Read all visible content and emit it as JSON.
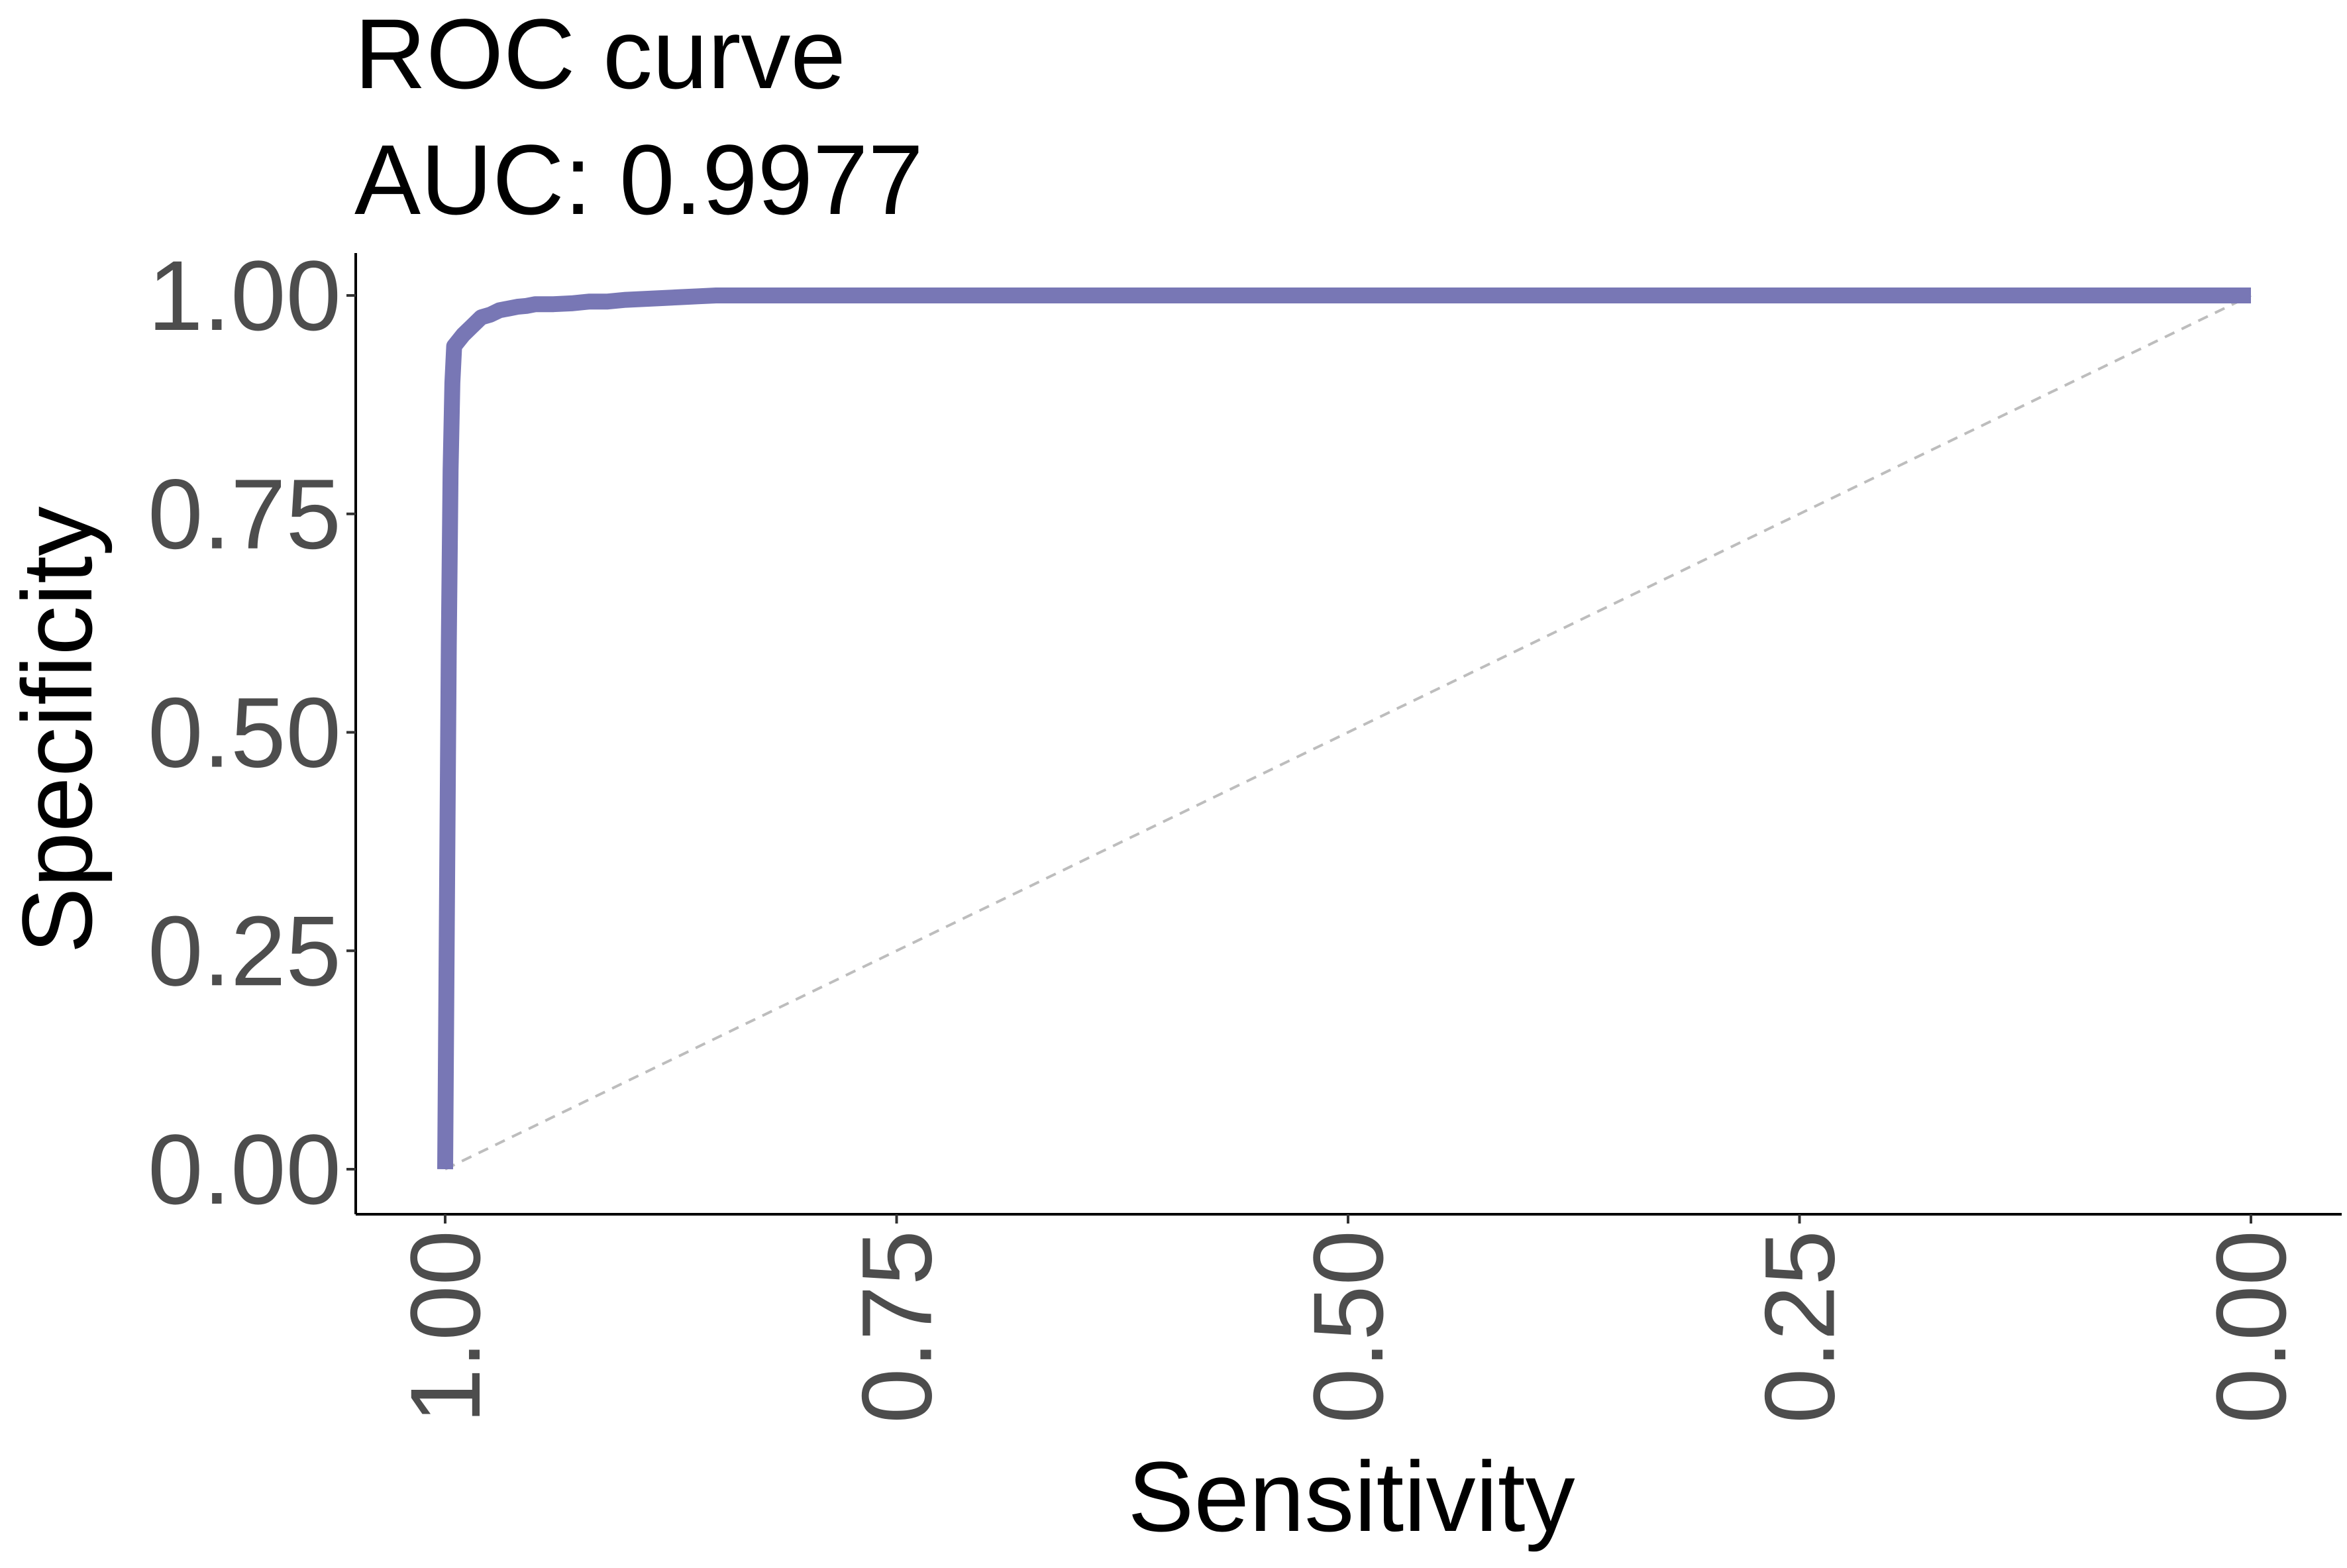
{
  "chart_data": {
    "type": "line",
    "title": "ROC curve",
    "subtitle": "AUC: 0.9977",
    "xlabel": "Sensitivity",
    "ylabel": "Specificity",
    "x_reversed": true,
    "xlim": [
      1.0,
      0.0
    ],
    "ylim": [
      0.0,
      1.0
    ],
    "x_ticks": [
      1.0,
      0.75,
      0.5,
      0.25,
      0.0
    ],
    "x_tick_labels": [
      "1.00",
      "0.75",
      "0.50",
      "0.25",
      "0.00"
    ],
    "y_ticks": [
      0.0,
      0.25,
      0.5,
      0.75,
      1.0
    ],
    "y_tick_labels": [
      "0.00",
      "0.25",
      "0.50",
      "0.75",
      "1.00"
    ],
    "x_tick_label_rotation": "vertical",
    "grid": false,
    "legend": "none",
    "series": [
      {
        "color": "#7877b5",
        "x": [
          1.0,
          0.999,
          0.998,
          0.997,
          0.996,
          0.995,
          0.99,
          0.985,
          0.98,
          0.975,
          0.97,
          0.965,
          0.96,
          0.955,
          0.95,
          0.94,
          0.93,
          0.925,
          0.92,
          0.91,
          0.9,
          0.88,
          0.87,
          0.86,
          0.85,
          0.84,
          0.0
        ],
        "y": [
          0.0,
          0.3,
          0.6,
          0.8,
          0.9,
          0.942,
          0.955,
          0.965,
          0.975,
          0.978,
          0.983,
          0.985,
          0.987,
          0.988,
          0.99,
          0.99,
          0.991,
          0.992,
          0.993,
          0.993,
          0.995,
          0.997,
          0.998,
          0.999,
          1.0,
          1.0,
          1.0
        ]
      }
    ],
    "reference_line": {
      "x": [
        1.0,
        0.0
      ],
      "y": [
        0.0,
        1.0
      ],
      "style": "dashed",
      "color": "#bdbdbd"
    }
  }
}
